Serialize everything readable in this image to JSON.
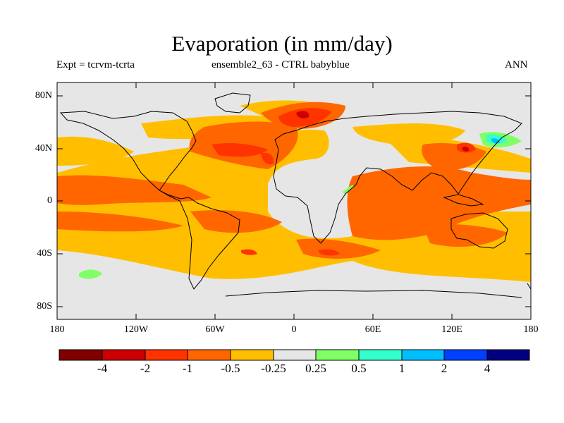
{
  "title": "Evaporation (in mm/day)",
  "subtitle_left": "Expt = tcrvm-tcrta",
  "subtitle_center": "ensemble2_63 - CTRL babyblue",
  "subtitle_right": "ANN",
  "lat_ticks": [
    "80N",
    "40N",
    "0",
    "40S",
    "80S"
  ],
  "lon_ticks": [
    "180",
    "120W",
    "60W",
    "0",
    "60E",
    "120E",
    "180"
  ],
  "colorbar": {
    "labels": [
      "-4",
      "-2",
      "-1",
      "-0.5",
      "-0.25",
      "0.25",
      "0.5",
      "1",
      "2",
      "4"
    ],
    "colors": [
      "#800000",
      "#cc0000",
      "#ff3300",
      "#ff6600",
      "#ffbf00",
      "#e6e6e6",
      "#80ff66",
      "#33ffcc",
      "#00bfff",
      "#0040ff",
      "#000080"
    ]
  },
  "colors": {
    "neutral": "#e6e6e6",
    "light_orange": "#ffbf00",
    "orange": "#ff6600",
    "red_orange": "#ff3300",
    "red": "#cc0000",
    "light_green": "#80ff66",
    "cyan": "#33ffcc",
    "blue": "#00bfff",
    "coast": "#000000"
  }
}
